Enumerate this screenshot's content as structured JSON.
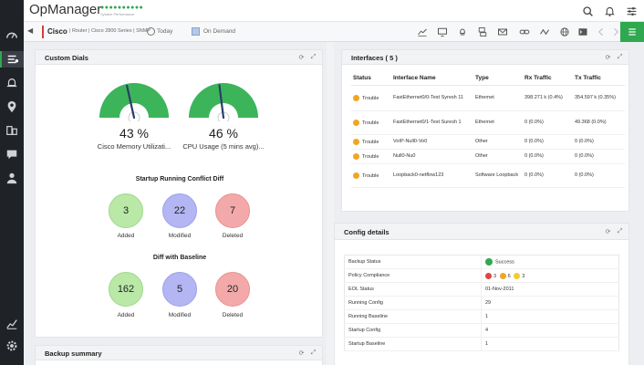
{
  "app": {
    "title": "OpManager",
    "health_dots": "●●●●●●●●●●",
    "health_label": "System Performance"
  },
  "device": {
    "name": "Cisco",
    "meta": "| Router | Cisco 2800 Series | SNMP",
    "period": "Today",
    "mode": "On Demand"
  },
  "custom_dials": {
    "title": "Custom Dials",
    "gauges": [
      {
        "value_text": "43 %",
        "label": "Cisco Memory Utilizati...",
        "value": 43
      },
      {
        "value_text": "46 %",
        "label": "CPU Usage (5 mins avg)...",
        "value": 46
      }
    ],
    "conflict": {
      "title": "Startup Running Conflict Diff",
      "items": [
        {
          "value": "3",
          "label": "Added"
        },
        {
          "value": "22",
          "label": "Modified"
        },
        {
          "value": "7",
          "label": "Deleted"
        }
      ]
    },
    "baseline": {
      "title": "Diff with Baseline",
      "items": [
        {
          "value": "162",
          "label": "Added"
        },
        {
          "value": "5",
          "label": "Modified"
        },
        {
          "value": "20",
          "label": "Deleted"
        }
      ]
    }
  },
  "backup_summary": {
    "title": "Backup summary"
  },
  "interfaces": {
    "title": "Interfaces ( 5 )",
    "columns": [
      "Status",
      "Interface Name",
      "Type",
      "Rx Traffic",
      "Tx Traffic"
    ],
    "rows": [
      {
        "status": "Trouble",
        "name": "FastEthernet0/0-Test Syresh 11",
        "type": "Ethernet",
        "rx": "398.271 k (0.4%)",
        "tx": "354.597 k (0.35%)"
      },
      {
        "status": "Trouble",
        "name": "FastEthernet0/1-Test Suresh 1",
        "type": "Ethernet",
        "rx": "0 (0.0%)",
        "tx": "49.368 (0.0%)"
      },
      {
        "status": "Trouble",
        "name": "VoIP-Null0-Vo0",
        "type": "Other",
        "rx": "0 (0.0%)",
        "tx": "0 (0.0%)"
      },
      {
        "status": "Trouble",
        "name": "Null0-Nu0",
        "type": "Other",
        "rx": "0 (0.0%)",
        "tx": "0 (0.0%)"
      },
      {
        "status": "Trouble",
        "name": "Loopback0-netflow123",
        "type": "Software Loopback",
        "rx": "0 (0.0%)",
        "tx": "0 (0.0%)"
      }
    ]
  },
  "config_details": {
    "title": "Config details",
    "backup_status": {
      "label": "Backup Status",
      "value": "Success"
    },
    "policy_compliance": {
      "label": "Policy Compliance",
      "high": "3",
      "medium": "6",
      "low": "3"
    },
    "rows": [
      {
        "label": "EOL Status",
        "value": "01-Nov-2011"
      },
      {
        "label": "Running Config",
        "value": "29"
      },
      {
        "label": "Running Baseline",
        "value": "1"
      },
      {
        "label": "Startup Config",
        "value": "4"
      },
      {
        "label": "Startup Baseline",
        "value": "1"
      }
    ]
  },
  "colors": {
    "accent": "#2fa84f",
    "gauge_fill": "#3cb55a",
    "gauge_track": "#dfe3e8",
    "needle": "#2a3d66"
  }
}
